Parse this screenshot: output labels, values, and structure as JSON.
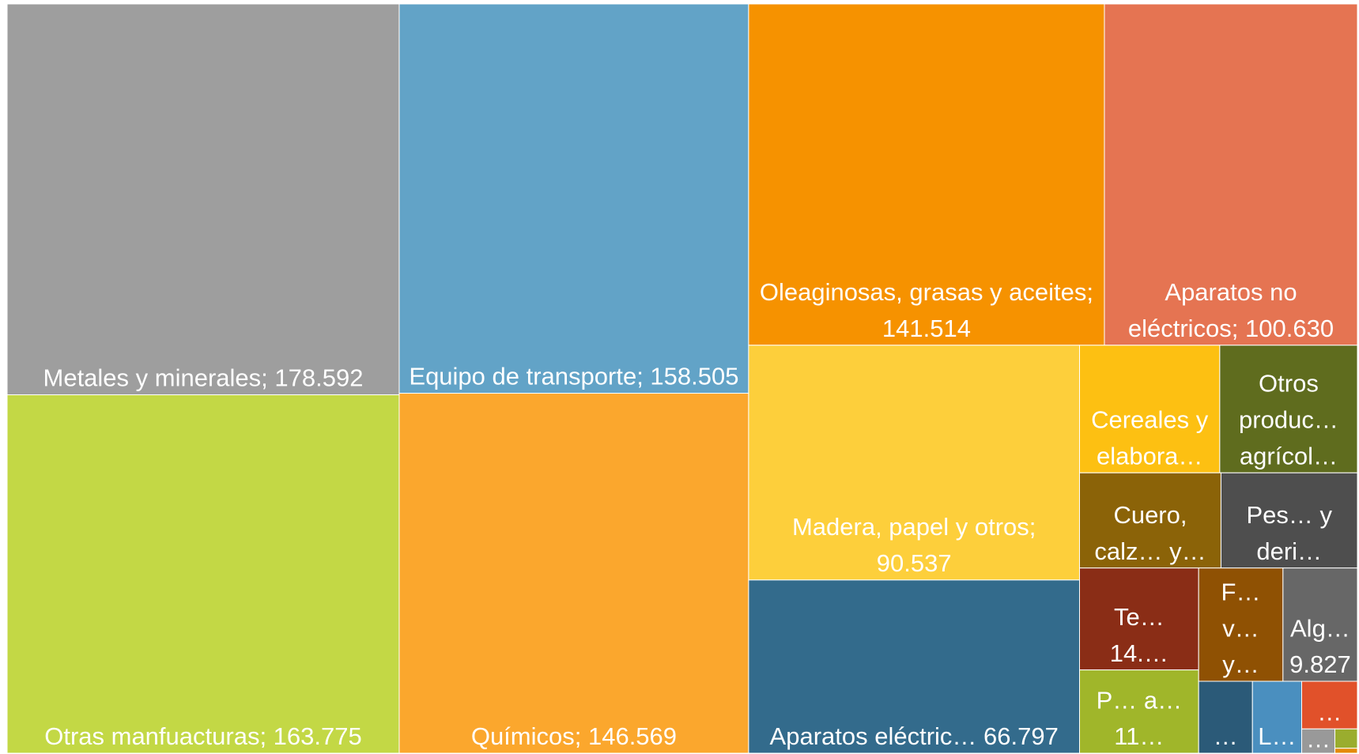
{
  "chart_data": {
    "type": "treemap",
    "categories": [
      "Metales y minerales; 178.592",
      "Otras manfuacturas; 163.775",
      "Equipo de transporte; 158.505",
      "Químicos; 146.569",
      "Oleaginosas, grasas y aceites; 141.514",
      "Aparatos no eléctricos; 100.630",
      "Madera, papel y otros; 90.537",
      "Aparatos eléctric… 66.797",
      "Cereales y elabora…",
      "Otros produc… agrícol…",
      "Cuero, calz… y…",
      "Pes… y deri…",
      "Te… 14.…",
      "P… a… 11…",
      "F… v… y…",
      "Alg… 9.827",
      "…",
      "L…",
      "…",
      "…",
      null,
      null
    ],
    "values": [
      178592,
      163775,
      158505,
      146569,
      141514,
      100630,
      90537,
      66797,
      20850,
      20470,
      15690,
      15130,
      14150,
      11560,
      11130,
      9827,
      4510,
      4126,
      3095,
      940,
      508,
      130
    ],
    "colors": [
      "#9e9e9e",
      "#c3d845",
      "#62a3c7",
      "#fba72d",
      "#f69200",
      "#e57452",
      "#fdcf3b",
      "#336b8c",
      "#fdc012",
      "#5f6c1e",
      "#8b6308",
      "#4e4e4e",
      "#8a2d16",
      "#a0b62a",
      "#8f5103",
      "#676767",
      "#2b5a78",
      "#4a8fbf",
      "#e1512a",
      "#999999",
      "#9aad2e",
      "#e48a0b"
    ]
  }
}
